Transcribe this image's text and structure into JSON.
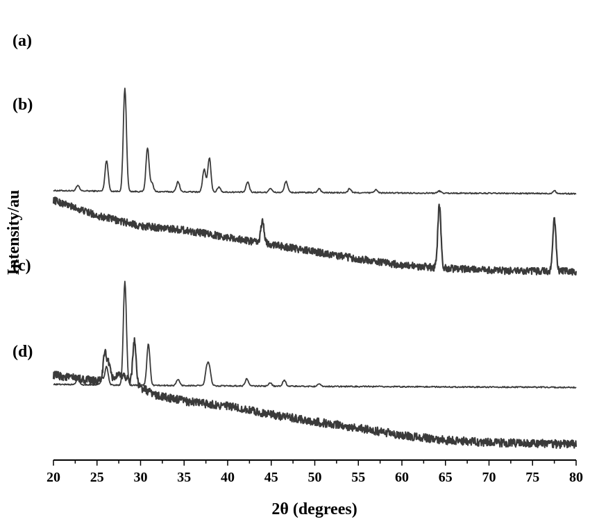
{
  "chart_data": {
    "type": "line",
    "title": "",
    "xlabel": "2θ (degrees)",
    "ylabel": "Intensity/au",
    "xlim": [
      20,
      80
    ],
    "xticks": [
      20,
      25,
      30,
      35,
      40,
      45,
      50,
      55,
      60,
      65,
      70,
      75,
      80
    ],
    "xtick_labels": [
      "20",
      "25",
      "30",
      "35",
      "40",
      "45",
      "50",
      "55",
      "60",
      "65",
      "70",
      "75",
      "80"
    ],
    "grid": false,
    "series": [
      {
        "name": "(a)",
        "baseline": [
          [
            20,
            0.03
          ],
          [
            30,
            0.02
          ],
          [
            50,
            0.01
          ],
          [
            80,
            0.0
          ]
        ],
        "noise": 0.006,
        "peaks": [
          [
            22.8,
            0.05
          ],
          [
            26.1,
            0.3
          ],
          [
            28.2,
            1.0
          ],
          [
            30.8,
            0.42
          ],
          [
            31.3,
            0.08
          ],
          [
            34.3,
            0.1
          ],
          [
            37.3,
            0.22
          ],
          [
            37.9,
            0.33
          ],
          [
            39.0,
            0.05
          ],
          [
            42.3,
            0.1
          ],
          [
            44.9,
            0.04
          ],
          [
            46.7,
            0.11
          ],
          [
            50.5,
            0.04
          ],
          [
            54.0,
            0.04
          ],
          [
            57.0,
            0.03
          ],
          [
            64.3,
            0.02
          ],
          [
            77.5,
            0.03
          ]
        ]
      },
      {
        "name": "(b)",
        "baseline": [
          [
            20,
            0.72
          ],
          [
            25,
            0.57
          ],
          [
            30,
            0.47
          ],
          [
            35,
            0.43
          ],
          [
            40,
            0.36
          ],
          [
            45,
            0.29
          ],
          [
            50,
            0.22
          ],
          [
            55,
            0.15
          ],
          [
            60,
            0.09
          ],
          [
            65,
            0.06
          ],
          [
            70,
            0.04
          ],
          [
            75,
            0.03
          ],
          [
            80,
            0.03
          ]
        ],
        "noise": 0.035,
        "peaks": [
          [
            44.0,
            0.22
          ],
          [
            64.3,
            0.6
          ],
          [
            77.5,
            0.52
          ]
        ]
      },
      {
        "name": "(c)",
        "baseline": [
          [
            20,
            0.03
          ],
          [
            30,
            0.02
          ],
          [
            50,
            0.01
          ],
          [
            80,
            0.0
          ]
        ],
        "noise": 0.006,
        "peaks": [
          [
            22.8,
            0.05
          ],
          [
            25.6,
            0.06
          ],
          [
            26.1,
            0.18
          ],
          [
            28.2,
            1.0
          ],
          [
            30.9,
            0.4
          ],
          [
            34.3,
            0.06
          ],
          [
            37.6,
            0.16
          ],
          [
            37.9,
            0.16
          ],
          [
            42.2,
            0.07
          ],
          [
            44.9,
            0.03
          ],
          [
            46.5,
            0.06
          ],
          [
            50.5,
            0.02
          ]
        ]
      },
      {
        "name": "(d)",
        "baseline": [
          [
            20,
            0.7
          ],
          [
            25,
            0.64
          ],
          [
            28,
            0.7
          ],
          [
            30,
            0.58
          ],
          [
            32,
            0.5
          ],
          [
            35,
            0.45
          ],
          [
            40,
            0.4
          ],
          [
            45,
            0.32
          ],
          [
            50,
            0.25
          ],
          [
            55,
            0.19
          ],
          [
            60,
            0.12
          ],
          [
            65,
            0.07
          ],
          [
            70,
            0.05
          ],
          [
            75,
            0.04
          ],
          [
            80,
            0.03
          ]
        ],
        "noise": 0.04,
        "peaks": [
          [
            25.9,
            0.25
          ],
          [
            26.3,
            0.15
          ],
          [
            29.3,
            0.42
          ]
        ]
      }
    ],
    "offsets": [
      1.35,
      0.92,
      0.32,
      0.0
    ]
  }
}
